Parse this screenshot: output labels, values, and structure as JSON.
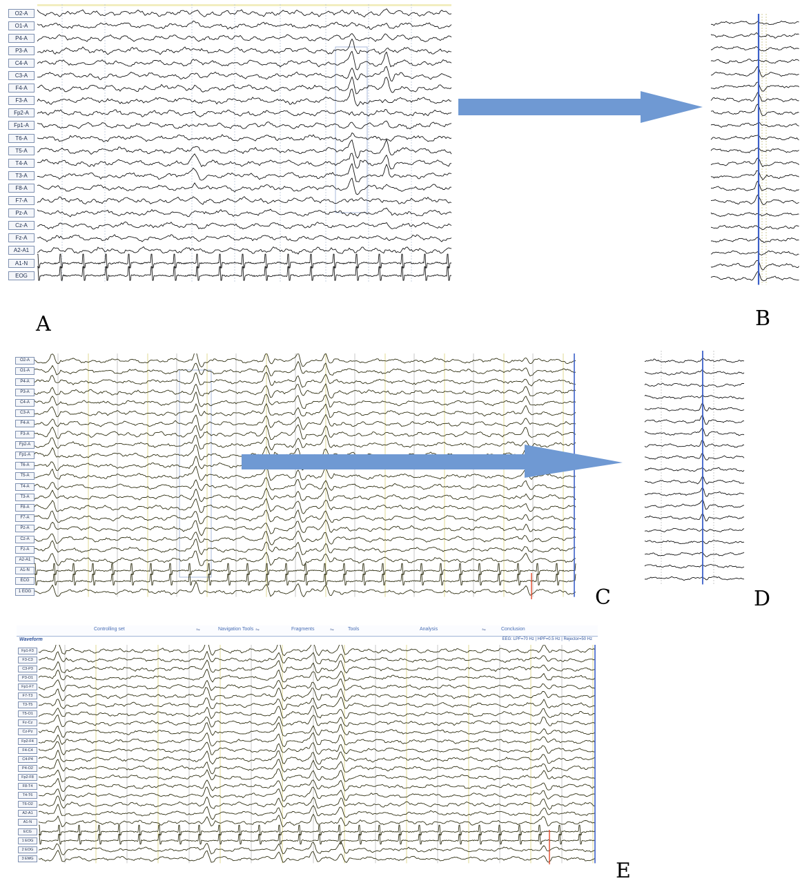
{
  "panels": {
    "A": {
      "letter": "A",
      "channels": [
        "O2-A",
        "O1-A",
        "P4-A",
        "P3-A",
        "C4-A",
        "C3-A",
        "F4-A",
        "F3-A",
        "Fp2-A",
        "Fp1-A",
        "T6-A",
        "T5-A",
        "T4-A",
        "T3-A",
        "F8-A",
        "F7-A",
        "Pz-A",
        "Cz-A",
        "Fz-A",
        "A2-A1",
        "A1-N",
        "EOG"
      ]
    },
    "B": {
      "letter": "B"
    },
    "C": {
      "letter": "C",
      "channels": [
        "O2-A",
        "O1-A",
        "P4-A",
        "P3-A",
        "C4-A",
        "C3-A",
        "F4-A",
        "F3-A",
        "Fp2-A",
        "Fp1-A",
        "T6-A",
        "T5-A",
        "T4-A",
        "T3-A",
        "F8-A",
        "F7-A",
        "Pz-A",
        "Cz-A",
        "Fz-A",
        "A2-A1",
        "A1-N",
        "ECG",
        "1 EOG"
      ]
    },
    "D": {
      "letter": "D"
    },
    "E": {
      "letter": "E",
      "toolbar": [
        "Controlling set",
        "Navigation Tools",
        "Fragments",
        "Tools",
        "Analysis",
        "Conclusion"
      ],
      "waveform_title": "Waveform",
      "filter_text": "EEG: LPF=70 Hz | HPF=0.5 Hz | Rejector=50 Hz",
      "channels": [
        "Fp1-F3",
        "F3-C3",
        "C3-P3",
        "P3-O1",
        "Fp1-F7",
        "F7-T3",
        "T3-T5",
        "T5-O1",
        "Fz-Cz",
        "Cz-Pz",
        "Fp2-F4",
        "F4-C4",
        "C4-P4",
        "P4-O2",
        "Fp2-F8",
        "F8-T4",
        "T4-T6",
        "T6-O2",
        "A2-A1",
        "A1-N",
        "ECG",
        "1 EOG",
        "2 EOG",
        "3 EMG"
      ]
    }
  },
  "colors": {
    "trace": "#141414",
    "trace_olive": "#2f2f12",
    "arrow": "#6f99d3",
    "marker_blue": "#3b5fc8",
    "marker_red": "#e04a2a",
    "grid_gray": "#b4b4b4",
    "grid_yellow": "#d8d078",
    "grid_blue": "#9fb3d8"
  }
}
